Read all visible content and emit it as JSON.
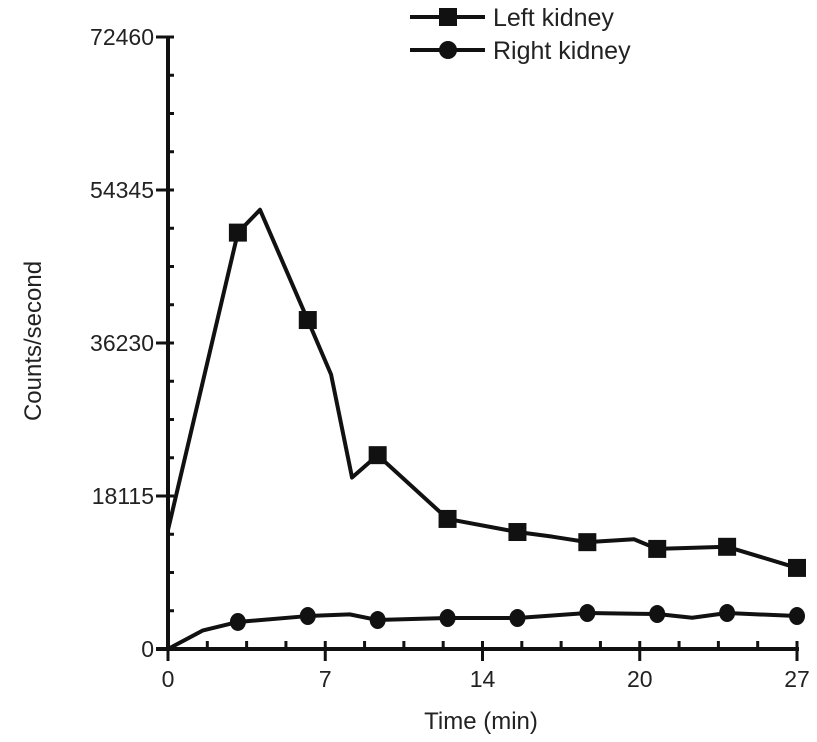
{
  "chart_data": {
    "type": "line",
    "title": "",
    "xlabel": "Time (min)",
    "ylabel": "Counts/second",
    "xlim": [
      0,
      27
    ],
    "ylim": [
      0,
      72460
    ],
    "x_ticks": [
      0,
      6.75,
      13.5,
      20.25,
      27
    ],
    "x_tick_labels": [
      "0",
      "7",
      "14",
      "20",
      "27"
    ],
    "y_ticks": [
      0,
      18115,
      36230,
      54345,
      72460
    ],
    "y_tick_labels": [
      "0",
      "18115",
      "36230",
      "54345",
      "72460"
    ],
    "grid": false,
    "legend_position": "top-right",
    "color": "#111111",
    "series": [
      {
        "name": "Left kidney",
        "marker": "square",
        "line": [
          [
            0,
            14100
          ],
          [
            3,
            49300
          ],
          [
            3.95,
            52000
          ],
          [
            6,
            38950
          ],
          [
            7,
            32500
          ],
          [
            7.9,
            20300
          ],
          [
            9,
            22950
          ],
          [
            12,
            15400
          ],
          [
            15,
            13850
          ],
          [
            16.5,
            13300
          ],
          [
            18,
            12650
          ],
          [
            20,
            13000
          ],
          [
            21,
            11850
          ],
          [
            24,
            12100
          ],
          [
            27,
            9600
          ]
        ],
        "markers": [
          [
            3,
            49300
          ],
          [
            6,
            38950
          ],
          [
            9,
            22950
          ],
          [
            12,
            15400
          ],
          [
            15,
            13850
          ],
          [
            18,
            12650
          ],
          [
            21,
            11850
          ],
          [
            24,
            12100
          ],
          [
            27,
            9600
          ]
        ]
      },
      {
        "name": "Right kidney",
        "marker": "circle",
        "line": [
          [
            0,
            0
          ],
          [
            1.5,
            2200
          ],
          [
            3,
            3200
          ],
          [
            6,
            3900
          ],
          [
            7.8,
            4100
          ],
          [
            9,
            3430
          ],
          [
            12,
            3670
          ],
          [
            15,
            3670
          ],
          [
            18,
            4260
          ],
          [
            21,
            4140
          ],
          [
            22.5,
            3700
          ],
          [
            24,
            4260
          ],
          [
            27,
            3900
          ]
        ],
        "markers": [
          [
            3,
            3200
          ],
          [
            6,
            3900
          ],
          [
            9,
            3430
          ],
          [
            12,
            3670
          ],
          [
            15,
            3670
          ],
          [
            18,
            4260
          ],
          [
            21,
            4140
          ],
          [
            24,
            4260
          ],
          [
            27,
            3900
          ]
        ]
      }
    ]
  }
}
